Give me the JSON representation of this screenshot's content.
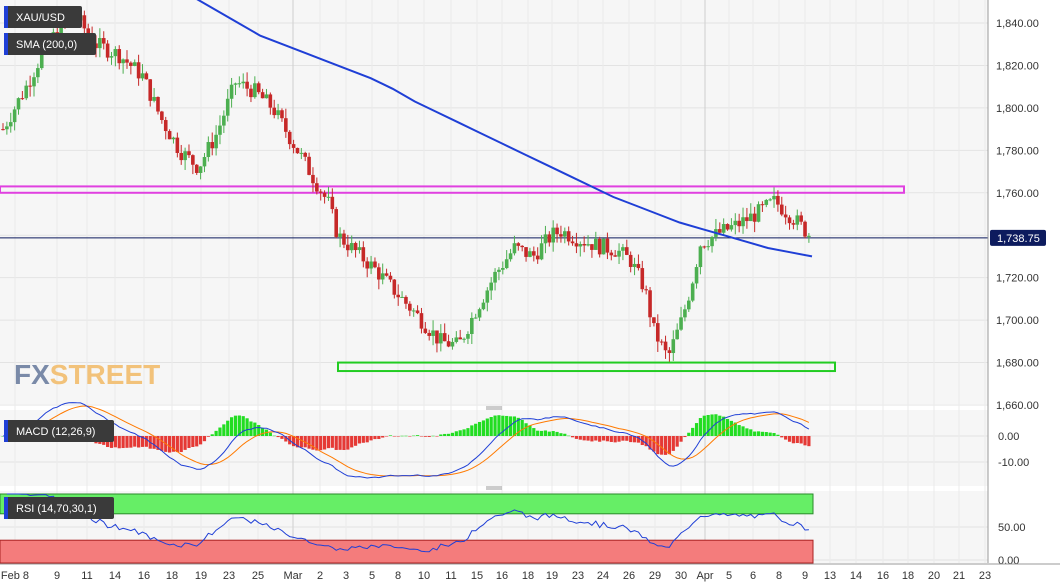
{
  "instrument": "XAU/USD",
  "indicators": {
    "sma_label": "SMA (200,0)",
    "macd_label": "MACD (12,26,9)",
    "rsi_label": "RSI (14,70,30,1)"
  },
  "watermark": {
    "part1": "FX",
    "part2": "STREET"
  },
  "current_price_label": "1,738.75",
  "colors": {
    "up_candle": "#4caf50",
    "down_candle": "#c62828",
    "sma_line": "#1f3fd6",
    "resistance_box": "#e040e0",
    "support_box": "#22cc22",
    "macd_line": "#1f3fd6",
    "signal_line": "#ff7a00",
    "hist_pos": "#22dd22",
    "hist_neg": "#e53935",
    "rsi_line": "#1f3fd6",
    "rsi_overbought_fill": "#66ee66",
    "rsi_oversold_fill": "#f47c7c",
    "tag_bg": "#3a3a3a",
    "price_tag_bg": "#0d1b5e"
  },
  "chart_data": [
    {
      "type": "candlestick",
      "title": "XAU/USD",
      "y_ticks": [
        "1,840.00",
        "1,820.00",
        "1,800.00",
        "1,780.00",
        "1,760.00",
        "1,740.00",
        "1,720.00",
        "1,700.00",
        "1,680.00",
        "1,660.00"
      ],
      "ylim": [
        1655,
        1850
      ],
      "x_ticks": [
        "Feb 8",
        "9",
        "11",
        "14",
        "16",
        "18",
        "19",
        "23",
        "25",
        "Mar",
        "2",
        "3",
        "5",
        "8",
        "10",
        "11",
        "15",
        "16",
        "18",
        "19",
        "23",
        "24",
        "26",
        "29",
        "30",
        "Apr",
        "5",
        "6",
        "8",
        "9",
        "13",
        "14",
        "16",
        "18",
        "20",
        "21",
        "23"
      ],
      "last_price": 1738.75,
      "resistance_zone": [
        1760,
        1763
      ],
      "support_zone": [
        1676,
        1680
      ],
      "series": [
        {
          "name": "SMA (200,0)",
          "points": [
            [
              0,
              1856
            ],
            [
              10,
              1852
            ],
            [
              15,
              1846
            ],
            [
              20,
              1840
            ],
            [
              25,
              1834
            ],
            [
              30,
              1830
            ],
            [
              35,
              1826
            ],
            [
              40,
              1822
            ],
            [
              45,
              1818
            ],
            [
              50,
              1814
            ],
            [
              55,
              1809
            ],
            [
              60,
              1803
            ],
            [
              65,
              1798
            ],
            [
              70,
              1793
            ],
            [
              75,
              1788
            ],
            [
              80,
              1783
            ],
            [
              85,
              1778
            ],
            [
              90,
              1773
            ],
            [
              95,
              1768
            ],
            [
              100,
              1763
            ],
            [
              105,
              1758
            ],
            [
              110,
              1754
            ],
            [
              115,
              1750
            ],
            [
              120,
              1746
            ],
            [
              125,
              1743
            ],
            [
              130,
              1740
            ],
            [
              135,
              1737
            ],
            [
              140,
              1734
            ],
            [
              145,
              1732
            ],
            [
              150,
              1730
            ]
          ]
        }
      ]
    },
    {
      "type": "macd",
      "title": "MACD (12,26,9)",
      "y_ticks": [
        "0.00",
        "-10.00"
      ],
      "ylim": [
        -18,
        8
      ]
    },
    {
      "type": "rsi",
      "title": "RSI (14,70,30,1)",
      "y_ticks": [
        "50.00",
        "0.00"
      ],
      "ylim": [
        0,
        100
      ],
      "overbought": 70,
      "oversold": 30
    }
  ]
}
